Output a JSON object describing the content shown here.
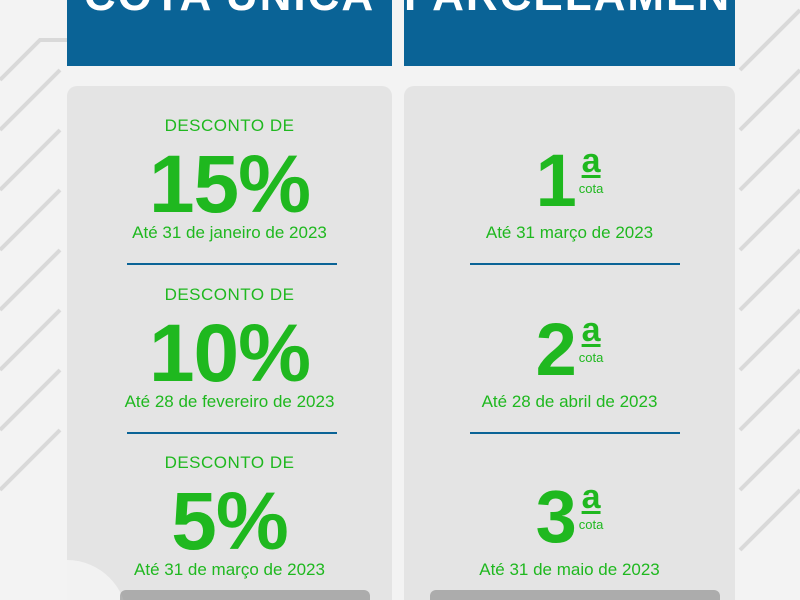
{
  "headers": {
    "left": "COTA ÚNICA",
    "right": "PARCELAMENTO"
  },
  "cota_unica": [
    {
      "label": "DESCONTO DE",
      "value": "15%",
      "date": "Até 31 de janeiro de 2023"
    },
    {
      "label": "DESCONTO DE",
      "value": "10%",
      "date": "Até 28 de fevereiro de 2023"
    },
    {
      "label": "DESCONTO DE",
      "value": "5%",
      "date": "Até 31 de março de 2023"
    }
  ],
  "parcelamento": [
    {
      "number": "1",
      "ordinal": "a",
      "word": "cota",
      "date": "Até 31 março de 2023"
    },
    {
      "number": "2",
      "ordinal": "a",
      "word": "cota",
      "date": "Até 28 de abril de 2023"
    },
    {
      "number": "3",
      "ordinal": "a",
      "word": "cota",
      "date": "Até 31 de maio de 2023"
    }
  ],
  "colors": {
    "header_blue": "#0a6396",
    "accent_green": "#1fb81f",
    "panel_gray": "#e4e4e4"
  }
}
